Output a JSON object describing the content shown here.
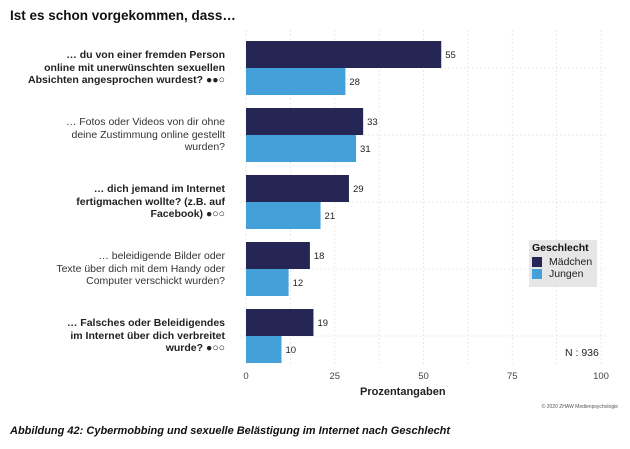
{
  "chart_data": {
    "type": "bar",
    "orientation": "horizontal",
    "title": "Ist es schon vorgekommen, dass…",
    "xlabel": "Prozentangaben",
    "ylabel": "",
    "xlim": [
      0,
      100
    ],
    "xticks": [
      0,
      25,
      50,
      75,
      100
    ],
    "grid": true,
    "categories": [
      {
        "lines": [
          "… du von einer fremden Person",
          "online mit unerwünschten sexuellen",
          "Absichten angesprochen wurdest? ●●○"
        ],
        "bold": true
      },
      {
        "lines": [
          "… Fotos oder Videos von dir ohne",
          "deine Zustimmung online gestellt",
          "wurden?"
        ],
        "bold": false
      },
      {
        "lines": [
          "… dich jemand im Internet",
          "fertigmachen wollte? (z.B. auf",
          "Facebook) ●○○"
        ],
        "bold": true
      },
      {
        "lines": [
          "… beleidigende Bilder oder",
          "Texte über dich mit dem Handy oder",
          "Computer verschickt wurden?"
        ],
        "bold": false
      },
      {
        "lines": [
          "… Falsches oder Beleidigendes",
          "im Internet über dich verbreitet",
          "wurde? ●○○"
        ],
        "bold": true
      }
    ],
    "series": [
      {
        "name": "Mädchen",
        "color": "#252654",
        "values": [
          55,
          33,
          29,
          18,
          19
        ]
      },
      {
        "name": "Jungen",
        "color": "#44a0d8",
        "values": [
          28,
          31,
          21,
          12,
          10
        ]
      }
    ],
    "legend": {
      "title": "Geschlecht",
      "placement": "right"
    },
    "annotation": "N : 936"
  },
  "copyright": "© 2020 ZHAW Medienpsychologie",
  "caption": "Abbildung 42: Cybermobbing und sexuelle Belästigung im Internet nach Geschlecht"
}
